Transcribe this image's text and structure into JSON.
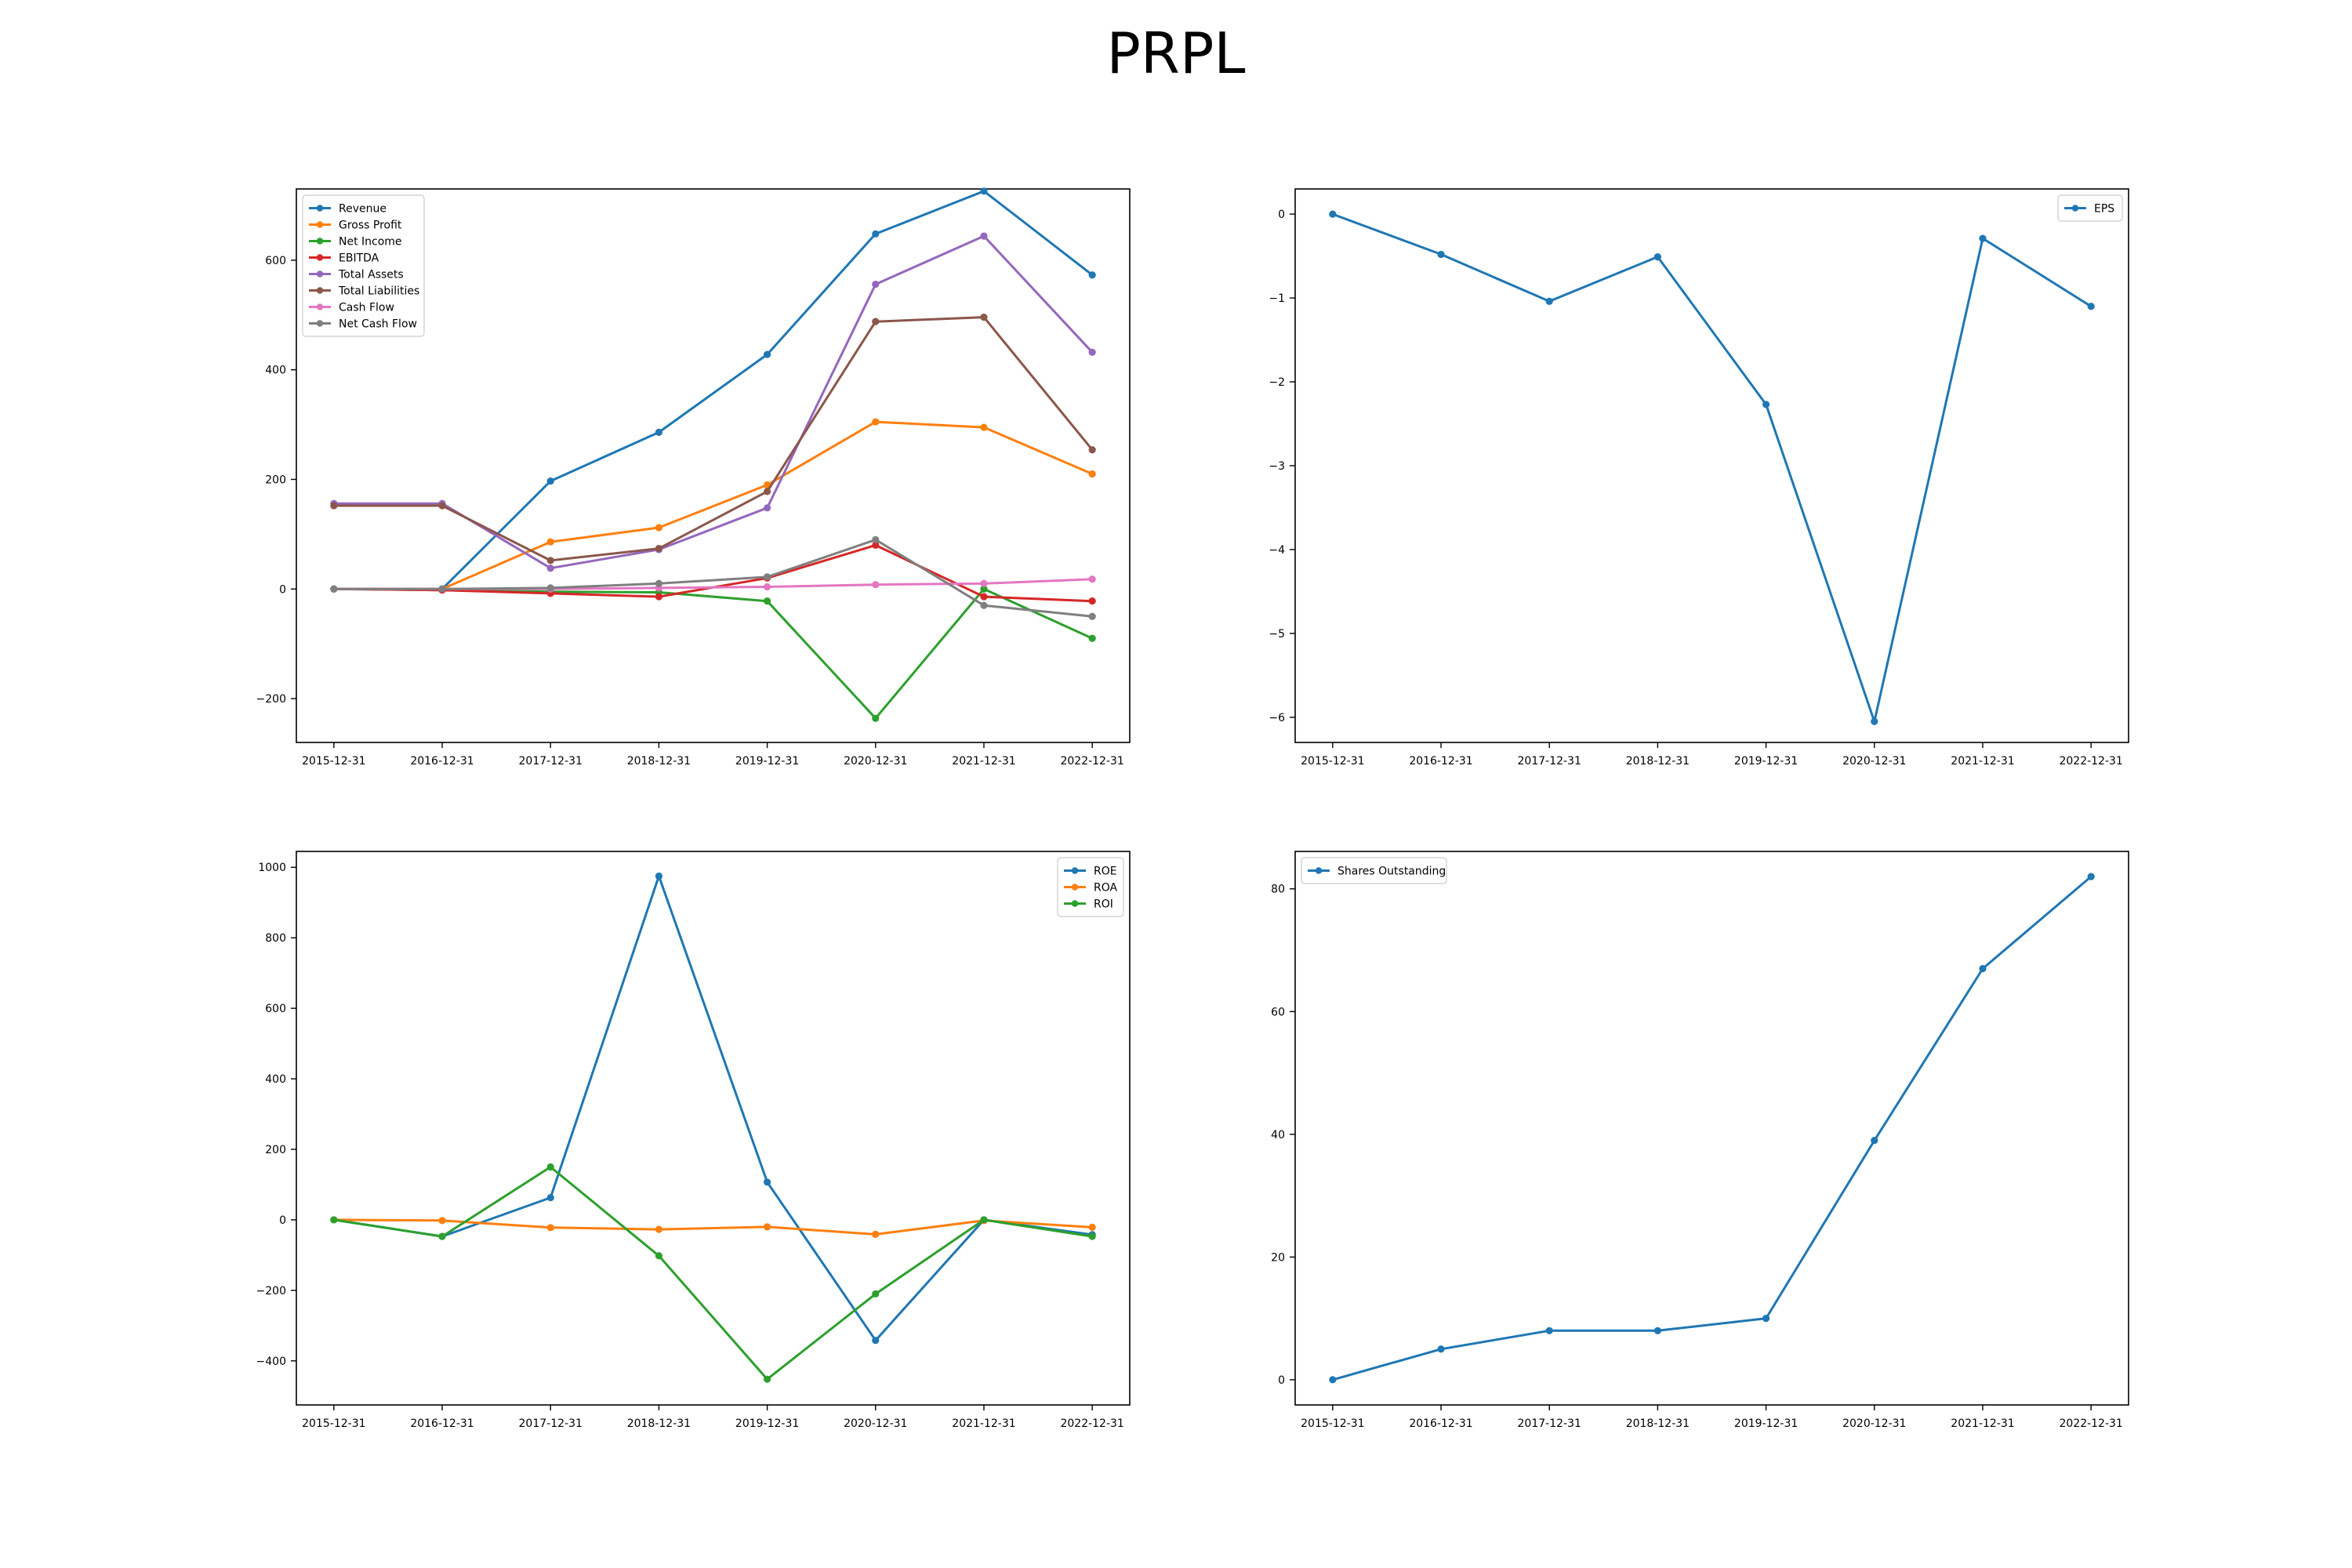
{
  "figure": {
    "title": "PRPL"
  },
  "chart_data": [
    {
      "type": "line",
      "categories": [
        "2015-12-31",
        "2016-12-31",
        "2017-12-31",
        "2018-12-31",
        "2019-12-31",
        "2020-12-31",
        "2021-12-31",
        "2022-12-31"
      ],
      "ylim": [
        -280,
        730
      ],
      "yticks": [
        -200,
        0,
        200,
        400,
        600
      ],
      "legend": "top-left",
      "series": [
        {
          "name": "Revenue",
          "color": "#1f77b4",
          "values": [
            0,
            0,
            197,
            286,
            428,
            648,
            726,
            573
          ]
        },
        {
          "name": "Gross Profit",
          "color": "#ff7f0e",
          "values": [
            0,
            0,
            86,
            112,
            190,
            305,
            295,
            210
          ]
        },
        {
          "name": "Net Income",
          "color": "#2ca02c",
          "values": [
            0,
            -2,
            -5,
            -6,
            -22,
            -236,
            0,
            -90
          ]
        },
        {
          "name": "EBITDA",
          "color": "#d62728",
          "values": [
            0,
            -2,
            -8,
            -14,
            20,
            80,
            -14,
            -22
          ]
        },
        {
          "name": "Total Assets",
          "color": "#9467bd",
          "values": [
            156,
            156,
            38,
            72,
            148,
            556,
            644,
            432
          ]
        },
        {
          "name": "Total Liabilities",
          "color": "#8c564b",
          "values": [
            152,
            152,
            52,
            74,
            178,
            488,
            496,
            254
          ]
        },
        {
          "name": "Cash Flow",
          "color": "#e377c2",
          "values": [
            0,
            0,
            0,
            2,
            4,
            8,
            10,
            18
          ]
        },
        {
          "name": "Net Cash Flow",
          "color": "#7f7f7f",
          "values": [
            0,
            0,
            2,
            10,
            22,
            90,
            -30,
            -50
          ]
        }
      ]
    },
    {
      "type": "line",
      "categories": [
        "2015-12-31",
        "2016-12-31",
        "2017-12-31",
        "2018-12-31",
        "2019-12-31",
        "2020-12-31",
        "2021-12-31",
        "2022-12-31"
      ],
      "ylim": [
        -6.3,
        0.3
      ],
      "yticks": [
        -6,
        -5,
        -4,
        -3,
        -2,
        -1,
        0
      ],
      "legend": "top-right",
      "series": [
        {
          "name": "EPS",
          "color": "#1f77b4",
          "values": [
            0,
            -0.48,
            -1.04,
            -0.51,
            -2.27,
            -6.05,
            -0.29,
            -1.1
          ]
        }
      ]
    },
    {
      "type": "line",
      "categories": [
        "2015-12-31",
        "2016-12-31",
        "2017-12-31",
        "2018-12-31",
        "2019-12-31",
        "2020-12-31",
        "2021-12-31",
        "2022-12-31"
      ],
      "ylim": [
        -525,
        1045
      ],
      "yticks": [
        -400,
        -200,
        0,
        200,
        400,
        600,
        800,
        1000
      ],
      "legend": "top-right",
      "series": [
        {
          "name": "ROE",
          "color": "#1f77b4",
          "values": [
            0,
            -47,
            63,
            975,
            107,
            -342,
            0,
            -42
          ]
        },
        {
          "name": "ROA",
          "color": "#ff7f0e",
          "values": [
            0,
            -2,
            -22,
            -27,
            -20,
            -41,
            -2,
            -21
          ]
        },
        {
          "name": "ROI",
          "color": "#2ca02c",
          "values": [
            0,
            -47,
            150,
            -102,
            -452,
            -210,
            0,
            -47
          ]
        }
      ]
    },
    {
      "type": "line",
      "categories": [
        "2015-12-31",
        "2016-12-31",
        "2017-12-31",
        "2018-12-31",
        "2019-12-31",
        "2020-12-31",
        "2021-12-31",
        "2022-12-31"
      ],
      "ylim": [
        -4.1,
        86.1
      ],
      "yticks": [
        0,
        20,
        40,
        60,
        80
      ],
      "legend": "top-left",
      "series": [
        {
          "name": "Shares Outstanding",
          "color": "#1f77b4",
          "values": [
            0,
            5,
            8,
            8,
            10,
            39,
            67,
            82
          ]
        }
      ]
    }
  ]
}
